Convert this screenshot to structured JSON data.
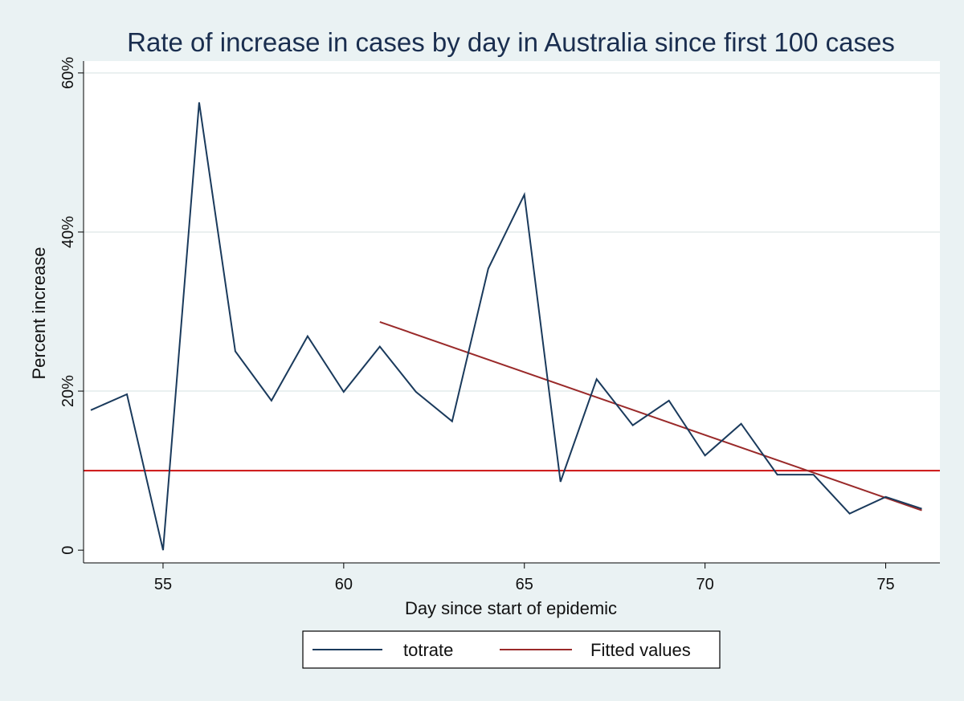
{
  "chart_data": {
    "type": "line",
    "title": "Rate of increase in cases by day in Australia since first 100 cases",
    "xlabel": "Day since start of epidemic",
    "ylabel": "Percent increase",
    "xlim": [
      52.8,
      76.5
    ],
    "ylim": [
      -1.6,
      61.5
    ],
    "x_ticks": [
      {
        "value": 55,
        "label": "55"
      },
      {
        "value": 60,
        "label": "60"
      },
      {
        "value": 65,
        "label": "65"
      },
      {
        "value": 70,
        "label": "70"
      },
      {
        "value": 75,
        "label": "75"
      }
    ],
    "y_ticks": [
      {
        "value": 0,
        "label": "0"
      },
      {
        "value": 20,
        "label": "20%"
      },
      {
        "value": 40,
        "label": "40%"
      },
      {
        "value": 60,
        "label": "60%"
      }
    ],
    "grid": true,
    "legend_position": "bottom",
    "series": [
      {
        "name": "totrate",
        "color": "#1a3a5c",
        "x": [
          53,
          54,
          55,
          56,
          57,
          58,
          59,
          60,
          61,
          62,
          63,
          64,
          65,
          66,
          67,
          68,
          69,
          70,
          71,
          72,
          73,
          74,
          75,
          76
        ],
        "values": [
          17.6,
          19.6,
          0.0,
          56.3,
          25.0,
          18.8,
          26.9,
          19.9,
          25.6,
          19.9,
          16.2,
          35.4,
          44.7,
          8.6,
          21.5,
          15.7,
          18.8,
          11.9,
          15.9,
          9.5,
          9.5,
          4.6,
          6.7,
          5.2
        ]
      },
      {
        "name": "Fitted values",
        "color": "#9a2a2a",
        "x": [
          61,
          76
        ],
        "values": [
          28.7,
          5.0
        ]
      }
    ],
    "reference_line": {
      "value": 10,
      "color": "#cc1111"
    }
  }
}
